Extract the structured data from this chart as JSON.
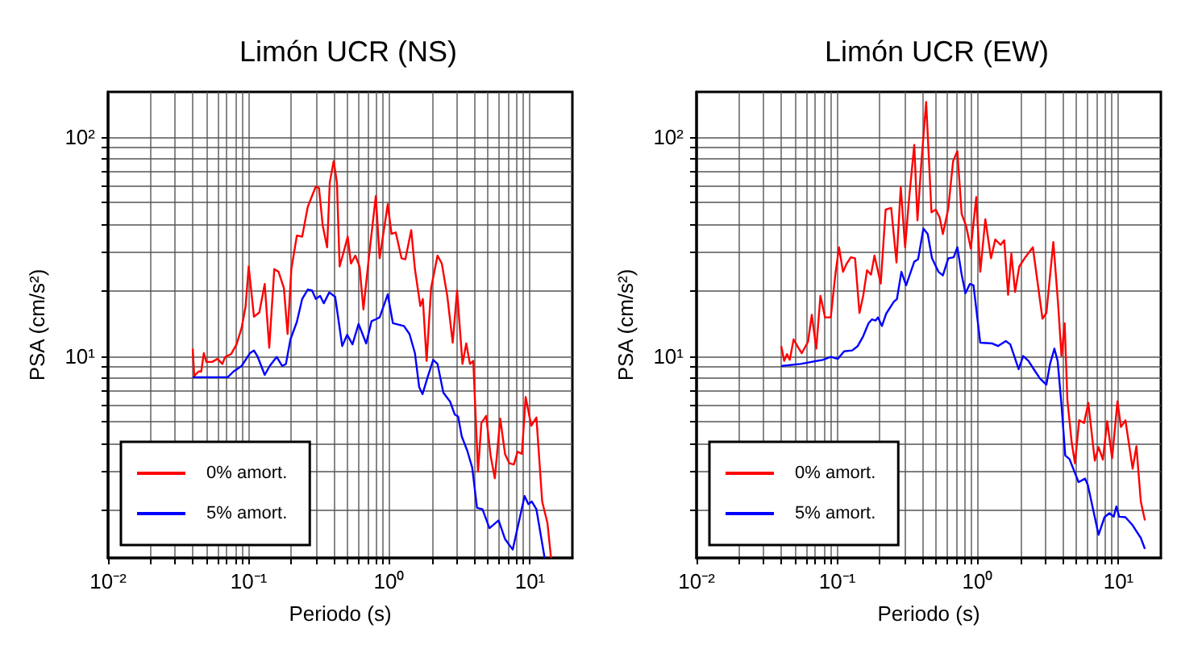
{
  "chart_data": [
    {
      "type": "line",
      "title": "Limón UCR (NS)",
      "xlabel": "Periodo (s)",
      "ylabel": "PSA (cm/s²)",
      "log": "xy",
      "grid": true,
      "legend": "bottom left",
      "marker": "none",
      "xlim": [
        0.01,
        20
      ],
      "ylim": [
        1.2,
        160
      ],
      "xticks": [
        {
          "value": 0.01,
          "label": "10⁻²"
        },
        {
          "value": 0.02,
          "label": null
        },
        {
          "value": 0.03,
          "label": null
        },
        {
          "value": 0.04,
          "label": null
        },
        {
          "value": 0.05,
          "label": null
        },
        {
          "value": 0.06,
          "label": null
        },
        {
          "value": 0.07,
          "label": null
        },
        {
          "value": 0.08,
          "label": null
        },
        {
          "value": 0.09,
          "label": null
        },
        {
          "value": 0.1,
          "label": "10⁻¹"
        },
        {
          "value": 0.2,
          "label": null
        },
        {
          "value": 0.3,
          "label": null
        },
        {
          "value": 0.4,
          "label": null
        },
        {
          "value": 0.5,
          "label": null
        },
        {
          "value": 0.6,
          "label": null
        },
        {
          "value": 0.7,
          "label": null
        },
        {
          "value": 0.8,
          "label": null
        },
        {
          "value": 0.9,
          "label": null
        },
        {
          "value": 1,
          "label": "10⁰"
        },
        {
          "value": 2,
          "label": null
        },
        {
          "value": 3,
          "label": null
        },
        {
          "value": 4,
          "label": null
        },
        {
          "value": 5,
          "label": null
        },
        {
          "value": 6,
          "label": null
        },
        {
          "value": 7,
          "label": null
        },
        {
          "value": 8,
          "label": null
        },
        {
          "value": 9,
          "label": null
        },
        {
          "value": 10,
          "label": "10¹"
        }
      ],
      "yticks": [
        {
          "value": 2,
          "label": null
        },
        {
          "value": 3,
          "label": null
        },
        {
          "value": 4,
          "label": null
        },
        {
          "value": 5,
          "label": null
        },
        {
          "value": 6,
          "label": null
        },
        {
          "value": 7,
          "label": null
        },
        {
          "value": 8,
          "label": null
        },
        {
          "value": 9,
          "label": null
        },
        {
          "value": 10,
          "label": "10¹"
        },
        {
          "value": 20,
          "label": null
        },
        {
          "value": 30,
          "label": null
        },
        {
          "value": 40,
          "label": null
        },
        {
          "value": 50,
          "label": null
        },
        {
          "value": 60,
          "label": null
        },
        {
          "value": 70,
          "label": null
        },
        {
          "value": 80,
          "label": null
        },
        {
          "value": 90,
          "label": null
        },
        {
          "value": 100,
          "label": "10²"
        }
      ],
      "series": [
        {
          "name": "0% amort.",
          "color": "#ff0000",
          "x": [
            0.04,
            0.041,
            0.044,
            0.046,
            0.048,
            0.05,
            0.055,
            0.06,
            0.065,
            0.068,
            0.075,
            0.082,
            0.089,
            0.095,
            0.1,
            0.109,
            0.119,
            0.13,
            0.14,
            0.152,
            0.163,
            0.178,
            0.189,
            0.201,
            0.22,
            0.24,
            0.263,
            0.3,
            0.316,
            0.336,
            0.361,
            0.377,
            0.402,
            0.424,
            0.443,
            0.471,
            0.506,
            0.533,
            0.573,
            0.614,
            0.654,
            0.714,
            0.801,
            0.853,
            0.974,
            1.036,
            1.11,
            1.22,
            1.3,
            1.43,
            1.52,
            1.66,
            1.73,
            1.84,
            1.98,
            2.2,
            2.36,
            2.58,
            2.82,
            3.03,
            3.31,
            3.52,
            3.74,
            3.95,
            4.27,
            4.51,
            4.88,
            5.24,
            5.62,
            6.14,
            6.65,
            7.14,
            7.67,
            8.16,
            8.75,
            9.31,
            10.2,
            11.1,
            12.2,
            13.3,
            14.1
          ],
          "values": [
            10.8,
            8.1,
            8.5,
            8.5,
            10.3,
            9.4,
            9.4,
            9.7,
            9.2,
            9.9,
            10.2,
            11.3,
            13.4,
            16.8,
            25.6,
            15.1,
            15.8,
            21.3,
            10.9,
            24.9,
            24.2,
            20.4,
            12.6,
            24.9,
            35.4,
            35,
            47.9,
            59.3,
            58.3,
            39.3,
            31.3,
            61.8,
            77.5,
            61.8,
            25.6,
            29.5,
            35,
            26.4,
            28.7,
            25.6,
            16.3,
            27.9,
            53.6,
            27.9,
            49.2,
            36,
            36.6,
            27.9,
            27.6,
            37.5,
            24.9,
            16.9,
            18.2,
            9.5,
            20.4,
            28.7,
            26.4,
            18.8,
            11.5,
            19.9,
            9.2,
            11.4,
            9.2,
            9.5,
            2.97,
            4.95,
            5.33,
            3.52,
            2.77,
            5.18,
            3.56,
            3.24,
            3.2,
            3.66,
            3.58,
            6.5,
            4.81,
            5.24,
            2.17,
            1.73,
            1.2
          ]
        },
        {
          "name": "5% amort.",
          "color": "#0000ff",
          "x": [
            0.04,
            0.048,
            0.071,
            0.078,
            0.089,
            0.102,
            0.109,
            0.116,
            0.13,
            0.141,
            0.158,
            0.173,
            0.184,
            0.198,
            0.22,
            0.24,
            0.263,
            0.282,
            0.3,
            0.322,
            0.342,
            0.374,
            0.412,
            0.462,
            0.501,
            0.547,
            0.604,
            0.684,
            0.747,
            0.801,
            0.853,
            0.974,
            1.06,
            1.27,
            1.39,
            1.52,
            1.63,
            1.72,
            1.87,
            2.05,
            2.2,
            2.42,
            2.7,
            2.92,
            3.08,
            3.27,
            3.58,
            3.88,
            4.2,
            4.59,
            5.15,
            5.98,
            6.65,
            7.53,
            9.15,
            9.73,
            10.3,
            11.1,
            12.7
          ],
          "values": [
            8,
            8,
            8,
            8.5,
            9,
            10.3,
            10.6,
            9.9,
            8.2,
            9,
            9.9,
            9,
            9.2,
            11.9,
            14.3,
            18.2,
            20.1,
            19.9,
            18.2,
            18.8,
            17.4,
            19.5,
            18.6,
            11.1,
            12.5,
            11.3,
            14,
            11.4,
            14.4,
            14.7,
            15,
            19.1,
            14.1,
            13.7,
            12.6,
            10.3,
            7.2,
            6.7,
            8,
            9.6,
            9.2,
            6.8,
            6.2,
            5.4,
            5.3,
            4.3,
            3.7,
            3.1,
            2.03,
            2,
            1.64,
            1.78,
            1.46,
            1.31,
            2.3,
            2.11,
            2.17,
            2,
            1.2
          ]
        }
      ]
    },
    {
      "type": "line",
      "title": "Limón UCR (EW)",
      "xlabel": "Periodo (s)",
      "ylabel": "PSA (cm/s²)",
      "log": "xy",
      "grid": true,
      "legend": "bottom left",
      "marker": "none",
      "xlim": [
        0.01,
        20
      ],
      "ylim": [
        1.2,
        160
      ],
      "xticks": [
        {
          "value": 0.01,
          "label": "10⁻²"
        },
        {
          "value": 0.02,
          "label": null
        },
        {
          "value": 0.03,
          "label": null
        },
        {
          "value": 0.04,
          "label": null
        },
        {
          "value": 0.05,
          "label": null
        },
        {
          "value": 0.06,
          "label": null
        },
        {
          "value": 0.07,
          "label": null
        },
        {
          "value": 0.08,
          "label": null
        },
        {
          "value": 0.09,
          "label": null
        },
        {
          "value": 0.1,
          "label": "10⁻¹"
        },
        {
          "value": 0.2,
          "label": null
        },
        {
          "value": 0.3,
          "label": null
        },
        {
          "value": 0.4,
          "label": null
        },
        {
          "value": 0.5,
          "label": null
        },
        {
          "value": 0.6,
          "label": null
        },
        {
          "value": 0.7,
          "label": null
        },
        {
          "value": 0.8,
          "label": null
        },
        {
          "value": 0.9,
          "label": null
        },
        {
          "value": 1,
          "label": "10⁰"
        },
        {
          "value": 2,
          "label": null
        },
        {
          "value": 3,
          "label": null
        },
        {
          "value": 4,
          "label": null
        },
        {
          "value": 5,
          "label": null
        },
        {
          "value": 6,
          "label": null
        },
        {
          "value": 7,
          "label": null
        },
        {
          "value": 8,
          "label": null
        },
        {
          "value": 9,
          "label": null
        },
        {
          "value": 10,
          "label": "10¹"
        }
      ],
      "yticks": [
        {
          "value": 2,
          "label": null
        },
        {
          "value": 3,
          "label": null
        },
        {
          "value": 4,
          "label": null
        },
        {
          "value": 5,
          "label": null
        },
        {
          "value": 6,
          "label": null
        },
        {
          "value": 7,
          "label": null
        },
        {
          "value": 8,
          "label": null
        },
        {
          "value": 9,
          "label": null
        },
        {
          "value": 10,
          "label": "10¹"
        },
        {
          "value": 20,
          "label": null
        },
        {
          "value": 30,
          "label": null
        },
        {
          "value": 40,
          "label": null
        },
        {
          "value": 50,
          "label": null
        },
        {
          "value": 60,
          "label": null
        },
        {
          "value": 70,
          "label": null
        },
        {
          "value": 80,
          "label": null
        },
        {
          "value": 90,
          "label": null
        },
        {
          "value": 100,
          "label": "10²"
        }
      ],
      "series": [
        {
          "name": "0% amort.",
          "color": "#ff0000",
          "x": [
            0.04,
            0.042,
            0.044,
            0.046,
            0.049,
            0.053,
            0.056,
            0.062,
            0.066,
            0.071,
            0.076,
            0.082,
            0.09,
            0.097,
            0.103,
            0.11,
            0.117,
            0.125,
            0.134,
            0.144,
            0.153,
            0.163,
            0.174,
            0.184,
            0.204,
            0.221,
            0.242,
            0.264,
            0.283,
            0.304,
            0.323,
            0.353,
            0.372,
            0.396,
            0.429,
            0.468,
            0.502,
            0.535,
            0.564,
            0.616,
            0.667,
            0.715,
            0.767,
            0.824,
            0.891,
            0.974,
            1.04,
            1.13,
            1.24,
            1.33,
            1.45,
            1.54,
            1.64,
            1.73,
            1.84,
            1.97,
            2.15,
            2.46,
            2.88,
            3.07,
            3.44,
            3.72,
            3.93,
            4.14,
            4.33,
            4.64,
            4.9,
            5.25,
            5.69,
            6.1,
            6.78,
            7.21,
            7.74,
            8.31,
            9,
            9.83,
            10.4,
            11.2,
            12.6,
            13.4,
            14.4,
            15.4
          ],
          "values": [
            11.1,
            9.5,
            10.2,
            9.6,
            11.9,
            10.9,
            10.3,
            11.6,
            15.4,
            10.8,
            18.8,
            15,
            15,
            23.5,
            31.3,
            24.2,
            26.4,
            28.2,
            27.9,
            15.7,
            18.8,
            24.6,
            23.5,
            28.7,
            21.4,
            46.5,
            47.3,
            26.7,
            59,
            31.3,
            50.6,
            91.8,
            41.5,
            75.3,
            144,
            45.2,
            46.5,
            42.8,
            36,
            47,
            77.5,
            85.9,
            44.4,
            39.3,
            30.9,
            53,
            24.2,
            42,
            27.9,
            34,
            32.1,
            33.7,
            19,
            29.3,
            19.6,
            25.6,
            27.9,
            31.3,
            14.8,
            15.7,
            33.1,
            17.2,
            10,
            14.1,
            6.3,
            4.06,
            3.24,
            5.09,
            4.95,
            6.11,
            3.33,
            3.84,
            3.37,
            5.04,
            3.42,
            6.21,
            4.75,
            5.09,
            3.06,
            3.88,
            2.17,
            1.78
          ]
        },
        {
          "name": "5% amort.",
          "color": "#0000ff",
          "x": [
            0.04,
            0.055,
            0.079,
            0.09,
            0.101,
            0.112,
            0.128,
            0.14,
            0.153,
            0.167,
            0.177,
            0.187,
            0.195,
            0.208,
            0.223,
            0.253,
            0.266,
            0.286,
            0.309,
            0.353,
            0.376,
            0.41,
            0.44,
            0.472,
            0.525,
            0.564,
            0.616,
            0.673,
            0.715,
            0.767,
            0.816,
            0.877,
            0.931,
            1.04,
            1.27,
            1.39,
            1.58,
            1.7,
            1.95,
            2.1,
            2.29,
            2.5,
            2.76,
            3.07,
            3.26,
            3.5,
            3.69,
            3.93,
            4.18,
            4.48,
            5.2,
            5.78,
            6.05,
            6.78,
            7.21,
            7.95,
            8.61,
            9.24,
            9.66,
            10.1,
            11.2,
            12.6,
            14.4,
            15.4
          ],
          "values": [
            9,
            9.2,
            9.6,
            9.9,
            9.7,
            10.5,
            10.6,
            11.1,
            12.3,
            14.1,
            14.7,
            14.5,
            15,
            13.7,
            15.6,
            17.7,
            18.2,
            24.2,
            21,
            26.9,
            27.6,
            38.1,
            36,
            27.9,
            24.2,
            23.3,
            27.9,
            28.2,
            31.3,
            23.5,
            19.3,
            21.3,
            21,
            11.5,
            11.4,
            11.1,
            11.7,
            11.3,
            8.7,
            10,
            9.5,
            8.7,
            7.9,
            7.4,
            9.2,
            10.8,
            9.5,
            6,
            3.52,
            3.39,
            2.66,
            2.76,
            2.58,
            1.84,
            1.53,
            1.84,
            1.92,
            1.85,
            2.06,
            1.85,
            1.84,
            1.69,
            1.48,
            1.32
          ]
        }
      ]
    }
  ]
}
